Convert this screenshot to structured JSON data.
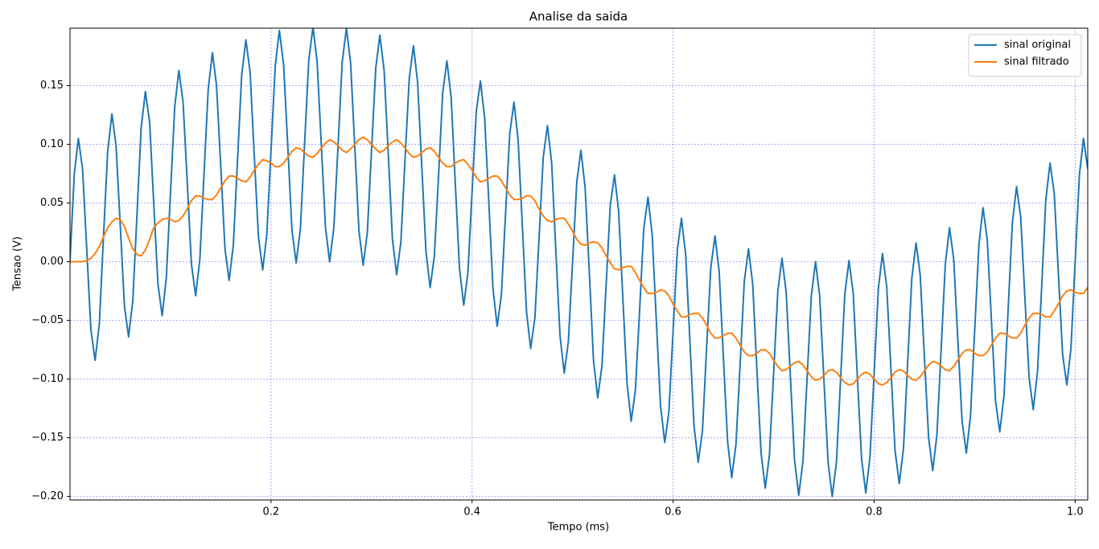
{
  "chart_data": {
    "type": "line",
    "title": "Analise da saida",
    "x_label": "Tempo (ms)",
    "y_label": "Tensao (V)",
    "x": [
      0,
      0.0042,
      0.0083,
      0.0125,
      0.0167,
      0.0208,
      0.025,
      0.0292,
      0.0333,
      0.0375,
      0.0417,
      0.0458,
      0.05,
      0.0542,
      0.0583,
      0.0625,
      0.0667,
      0.0708,
      0.075,
      0.0792,
      0.0833,
      0.0875,
      0.0917,
      0.0958,
      0.1,
      0.1042,
      0.1083,
      0.1125,
      0.1167,
      0.1208,
      0.125,
      0.1292,
      0.1333,
      0.1375,
      0.1417,
      0.1458,
      0.15,
      0.1542,
      0.1583,
      0.1625,
      0.1667,
      0.1708,
      0.175,
      0.1792,
      0.1833,
      0.1875,
      0.1917,
      0.1958,
      0.2,
      0.2042,
      0.2083,
      0.2125,
      0.2167,
      0.2208,
      0.225,
      0.2292,
      0.2333,
      0.2375,
      0.2417,
      0.2458,
      0.25,
      0.2542,
      0.2583,
      0.2625,
      0.2667,
      0.2708,
      0.275,
      0.2792,
      0.2833,
      0.2875,
      0.2917,
      0.2958,
      0.3,
      0.3042,
      0.3083,
      0.3125,
      0.3167,
      0.3208,
      0.325,
      0.3292,
      0.3333,
      0.3375,
      0.3417,
      0.3458,
      0.35,
      0.3542,
      0.3583,
      0.3625,
      0.3667,
      0.3708,
      0.375,
      0.3792,
      0.3833,
      0.3875,
      0.3917,
      0.3958,
      0.4,
      0.4042,
      0.4083,
      0.4125,
      0.4167,
      0.4208,
      0.425,
      0.4292,
      0.4333,
      0.4375,
      0.4417,
      0.4458,
      0.45,
      0.4542,
      0.4583,
      0.4625,
      0.4667,
      0.4708,
      0.475,
      0.4792,
      0.4833,
      0.4875,
      0.4917,
      0.4958,
      0.5,
      0.5042,
      0.5083,
      0.5125,
      0.5167,
      0.5208,
      0.525,
      0.5292,
      0.5333,
      0.5375,
      0.5417,
      0.5458,
      0.55,
      0.5542,
      0.5583,
      0.5625,
      0.5667,
      0.5708,
      0.575,
      0.5792,
      0.5833,
      0.5875,
      0.5917,
      0.5958,
      0.6,
      0.6042,
      0.6083,
      0.6125,
      0.6167,
      0.6208,
      0.625,
      0.6292,
      0.6333,
      0.6375,
      0.6417,
      0.6458,
      0.65,
      0.6542,
      0.6583,
      0.6625,
      0.6667,
      0.6708,
      0.675,
      0.6792,
      0.6833,
      0.6875,
      0.6917,
      0.6958,
      0.7,
      0.7042,
      0.7083,
      0.7125,
      0.7167,
      0.7208,
      0.725,
      0.7292,
      0.7333,
      0.7375,
      0.7417,
      0.7458,
      0.75,
      0.7542,
      0.7583,
      0.7625,
      0.7667,
      0.7708,
      0.775,
      0.7792,
      0.7833,
      0.7875,
      0.7917,
      0.7958,
      0.8,
      0.8042,
      0.8083,
      0.8125,
      0.8167,
      0.8208,
      0.825,
      0.8292,
      0.8333,
      0.8375,
      0.8417,
      0.8458,
      0.85,
      0.8542,
      0.8583,
      0.8625,
      0.8667,
      0.8708,
      0.875,
      0.8792,
      0.8833,
      0.8875,
      0.8917,
      0.8958,
      0.9,
      0.9042,
      0.9083,
      0.9125,
      0.9167,
      0.9208,
      0.925,
      0.9292,
      0.9333,
      0.9375,
      0.9417,
      0.9458,
      0.95,
      0.9542,
      0.9583,
      0.9625,
      0.9667,
      0.9708,
      0.975,
      0.9792,
      0.9833,
      0.9875,
      0.9917,
      0.9958,
      1,
      1.0042,
      1.0083,
      1.0125
    ],
    "series": [
      {
        "name": "sinal original",
        "color": "#1f77b4",
        "values": [
          0,
          0.074,
          0.105,
          0.079,
          0.01,
          -0.058,
          -0.084,
          -0.053,
          0.021,
          0.094,
          0.126,
          0.099,
          0.031,
          -0.038,
          -0.064,
          -0.033,
          0.041,
          0.114,
          0.145,
          0.119,
          0.05,
          -0.019,
          -0.046,
          -0.014,
          0.059,
          0.132,
          0.163,
          0.136,
          0.067,
          -0.002,
          -0.029,
          0.002,
          0.074,
          0.147,
          0.178,
          0.15,
          0.081,
          0.011,
          -0.016,
          0.014,
          0.087,
          0.159,
          0.189,
          0.161,
          0.091,
          0.021,
          -0.007,
          0.023,
          0.095,
          0.167,
          0.197,
          0.168,
          0.098,
          0.027,
          -0.001,
          0.028,
          0.099,
          0.171,
          0.2,
          0.171,
          0.1,
          0.029,
          0,
          0.029,
          0.099,
          0.17,
          0.199,
          0.169,
          0.098,
          0.026,
          -0.003,
          0.025,
          0.095,
          0.165,
          0.193,
          0.163,
          0.091,
          0.019,
          -0.011,
          0.017,
          0.087,
          0.156,
          0.184,
          0.153,
          0.081,
          0.008,
          -0.022,
          0.005,
          0.074,
          0.144,
          0.171,
          0.14,
          0.067,
          -0.006,
          -0.037,
          -0.01,
          0.059,
          0.128,
          0.154,
          0.123,
          0.05,
          -0.023,
          -0.055,
          -0.028,
          0.041,
          0.109,
          0.136,
          0.104,
          0.031,
          -0.043,
          -0.074,
          -0.048,
          0.021,
          0.089,
          0.116,
          0.084,
          0.01,
          -0.063,
          -0.095,
          -0.068,
          0,
          0.068,
          0.095,
          0.063,
          -0.01,
          -0.084,
          -0.116,
          -0.089,
          -0.021,
          0.048,
          0.074,
          0.043,
          -0.031,
          -0.104,
          -0.136,
          -0.109,
          -0.041,
          0.028,
          0.055,
          0.023,
          -0.05,
          -0.123,
          -0.154,
          -0.128,
          -0.059,
          0.01,
          0.037,
          0.006,
          -0.067,
          -0.14,
          -0.171,
          -0.144,
          -0.074,
          -0.005,
          0.022,
          -0.008,
          -0.081,
          -0.153,
          -0.184,
          -0.156,
          -0.087,
          -0.017,
          0.011,
          -0.019,
          -0.091,
          -0.163,
          -0.193,
          -0.165,
          -0.095,
          -0.025,
          0.003,
          -0.026,
          -0.098,
          -0.169,
          -0.199,
          -0.17,
          -0.099,
          -0.029,
          0,
          -0.029,
          -0.1,
          -0.171,
          -0.2,
          -0.171,
          -0.099,
          -0.028,
          0.001,
          -0.027,
          -0.098,
          -0.168,
          -0.197,
          -0.167,
          -0.095,
          -0.023,
          0.007,
          -0.021,
          -0.091,
          -0.161,
          -0.189,
          -0.159,
          -0.087,
          -0.014,
          0.016,
          -0.011,
          -0.081,
          -0.15,
          -0.178,
          -0.147,
          -0.074,
          -0.002,
          0.029,
          0.002,
          -0.067,
          -0.136,
          -0.163,
          -0.132,
          -0.059,
          0.014,
          0.046,
          0.019,
          -0.05,
          -0.119,
          -0.145,
          -0.114,
          -0.041,
          0.033,
          0.064,
          0.038,
          -0.031,
          -0.099,
          -0.126,
          -0.094,
          -0.021,
          0.053,
          0.084,
          0.058,
          -0.01,
          -0.079,
          -0.105,
          -0.074,
          0,
          0.074,
          0.105,
          0.079
        ]
      },
      {
        "name": "sinal filtrado",
        "color": "#ff7f0e",
        "values": [
          0,
          0,
          0,
          0,
          0.001,
          0.003,
          0.007,
          0.013,
          0.021,
          0.029,
          0.034,
          0.037,
          0.036,
          0.03,
          0.02,
          0.011,
          0.006,
          0.005,
          0.01,
          0.019,
          0.029,
          0.033,
          0.036,
          0.037,
          0.036,
          0.034,
          0.035,
          0.039,
          0.045,
          0.052,
          0.056,
          0.056,
          0.054,
          0.053,
          0.053,
          0.057,
          0.063,
          0.069,
          0.073,
          0.073,
          0.071,
          0.069,
          0.068,
          0.072,
          0.078,
          0.083,
          0.087,
          0.086,
          0.084,
          0.081,
          0.081,
          0.084,
          0.089,
          0.094,
          0.097,
          0.096,
          0.093,
          0.09,
          0.089,
          0.092,
          0.097,
          0.101,
          0.104,
          0.102,
          0.099,
          0.095,
          0.093,
          0.096,
          0.1,
          0.104,
          0.106,
          0.104,
          0.1,
          0.096,
          0.093,
          0.095,
          0.099,
          0.102,
          0.104,
          0.101,
          0.097,
          0.092,
          0.089,
          0.09,
          0.093,
          0.096,
          0.097,
          0.094,
          0.089,
          0.084,
          0.081,
          0.081,
          0.084,
          0.086,
          0.087,
          0.083,
          0.078,
          0.072,
          0.068,
          0.069,
          0.071,
          0.073,
          0.073,
          0.069,
          0.063,
          0.057,
          0.053,
          0.053,
          0.054,
          0.056,
          0.056,
          0.052,
          0.045,
          0.039,
          0.035,
          0.034,
          0.036,
          0.037,
          0.037,
          0.032,
          0.026,
          0.019,
          0.015,
          0.014,
          0.016,
          0.017,
          0.016,
          0.012,
          0.005,
          -0.001,
          -0.006,
          -0.007,
          -0.005,
          -0.004,
          -0.004,
          -0.009,
          -0.016,
          -0.022,
          -0.027,
          -0.027,
          -0.026,
          -0.024,
          -0.025,
          -0.029,
          -0.036,
          -0.042,
          -0.047,
          -0.047,
          -0.045,
          -0.044,
          -0.044,
          -0.048,
          -0.054,
          -0.061,
          -0.065,
          -0.065,
          -0.063,
          -0.061,
          -0.061,
          -0.065,
          -0.071,
          -0.077,
          -0.08,
          -0.08,
          -0.078,
          -0.075,
          -0.075,
          -0.078,
          -0.084,
          -0.089,
          -0.093,
          -0.092,
          -0.089,
          -0.086,
          -0.085,
          -0.088,
          -0.093,
          -0.098,
          -0.101,
          -0.1,
          -0.097,
          -0.093,
          -0.092,
          -0.094,
          -0.099,
          -0.103,
          -0.105,
          -0.104,
          -0.1,
          -0.096,
          -0.094,
          -0.096,
          -0.1,
          -0.104,
          -0.105,
          -0.103,
          -0.099,
          -0.094,
          -0.092,
          -0.093,
          -0.097,
          -0.1,
          -0.101,
          -0.098,
          -0.093,
          -0.088,
          -0.085,
          -0.086,
          -0.089,
          -0.092,
          -0.093,
          -0.089,
          -0.084,
          -0.078,
          -0.075,
          -0.075,
          -0.078,
          -0.08,
          -0.08,
          -0.077,
          -0.071,
          -0.065,
          -0.061,
          -0.061,
          -0.063,
          -0.065,
          -0.065,
          -0.061,
          -0.054,
          -0.048,
          -0.044,
          -0.044,
          -0.045,
          -0.047,
          -0.047,
          -0.042,
          -0.036,
          -0.029,
          -0.025,
          -0.024,
          -0.026,
          -0.027,
          -0.027,
          -0.022
        ]
      }
    ],
    "xlim": [
      0,
      1.0125
    ],
    "ylim": [
      -0.203,
      0.199
    ],
    "xticks": [
      0.2,
      0.4,
      0.6,
      0.8,
      {
        "value": 1,
        "label": "1.0"
      }
    ],
    "yticks": [
      {
        "value": -0.2,
        "label": "−0.20"
      },
      {
        "value": -0.15,
        "label": "−0.15"
      },
      {
        "value": -0.1,
        "label": "−0.10"
      },
      {
        "value": -0.05,
        "label": "−0.05"
      },
      {
        "value": 0,
        "label": "0.00"
      },
      {
        "value": 0.05,
        "label": "0.05"
      },
      {
        "value": 0.1,
        "label": "0.10"
      },
      {
        "value": 0.15,
        "label": "0.15"
      }
    ],
    "grid": true,
    "grid_color": "#0000ff",
    "legend": "upper right"
  }
}
